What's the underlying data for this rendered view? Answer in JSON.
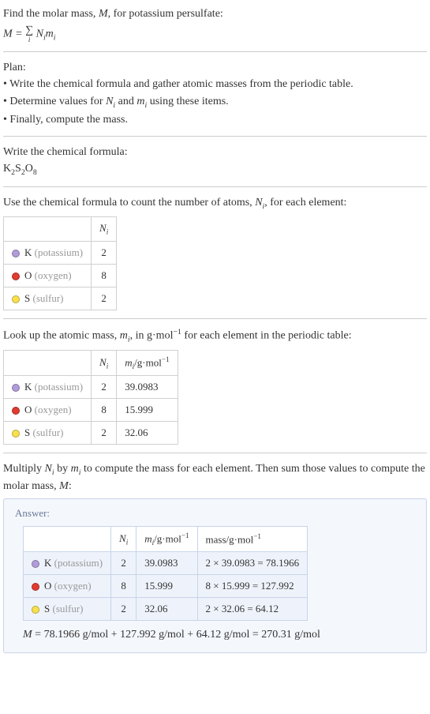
{
  "section1": {
    "intro": "Find the molar mass, ",
    "var_M": "M",
    "intro2": ", for potassium persulfate:",
    "formula_lhs": "M = ",
    "sigma": "∑",
    "sigma_sub": "i",
    "formula_rhs1": "N",
    "formula_rhs1_sub": "i",
    "formula_rhs2": "m",
    "formula_rhs2_sub": "i"
  },
  "plan": {
    "title": "Plan:",
    "b1": "• Write the chemical formula and gather atomic masses from the periodic table.",
    "b2a": "• Determine values for ",
    "b2_N": "N",
    "b2_Ni": "i",
    "b2b": " and ",
    "b2_m": "m",
    "b2_mi": "i",
    "b2c": " using these items.",
    "b3": "• Finally, compute the mass."
  },
  "section_chem": {
    "title": "Write the chemical formula:",
    "f1": "K",
    "s1": "2",
    "f2": "S",
    "s2": "2",
    "f3": "O",
    "s3": "8"
  },
  "section_count": {
    "text1": "Use the chemical formula to count the number of atoms, ",
    "N": "N",
    "Ni": "i",
    "text2": ", for each element:"
  },
  "table1": {
    "header_N": "N",
    "header_Ni": "i",
    "rows": [
      {
        "color": "#b19cd9",
        "sym": "K",
        "name": " (potassium)",
        "N": "2"
      },
      {
        "color": "#e03c31",
        "sym": "O",
        "name": " (oxygen)",
        "N": "8"
      },
      {
        "color": "#f9e04c",
        "sym": "S",
        "name": " (sulfur)",
        "N": "2"
      }
    ]
  },
  "section_mass": {
    "text1": "Look up the atomic mass, ",
    "m": "m",
    "mi": "i",
    "text2": ", in g·mol",
    "exp": "−1",
    "text3": " for each element in the periodic table:"
  },
  "table2": {
    "header_N": "N",
    "header_Ni": "i",
    "header_m": "m",
    "header_mi": "i",
    "header_unit": "/g·mol",
    "header_exp": "−1",
    "rows": [
      {
        "color": "#b19cd9",
        "sym": "K",
        "name": " (potassium)",
        "N": "2",
        "m": "39.0983"
      },
      {
        "color": "#e03c31",
        "sym": "O",
        "name": " (oxygen)",
        "N": "8",
        "m": "15.999"
      },
      {
        "color": "#f9e04c",
        "sym": "S",
        "name": " (sulfur)",
        "N": "2",
        "m": "32.06"
      }
    ]
  },
  "section_mult": {
    "t1": "Multiply ",
    "N": "N",
    "Ni": "i",
    "t2": " by ",
    "m": "m",
    "mi": "i",
    "t3": " to compute the mass for each element. Then sum those values to compute the molar mass, ",
    "M": "M",
    "t4": ":"
  },
  "answer": {
    "label": "Answer:",
    "header_N": "N",
    "header_Ni": "i",
    "header_m": "m",
    "header_mi": "i",
    "header_unit": "/g·mol",
    "header_exp": "−1",
    "header_mass": "mass/g·mol",
    "header_mass_exp": "−1",
    "rows": [
      {
        "color": "#b19cd9",
        "sym": "K",
        "name": " (potassium)",
        "N": "2",
        "m": "39.0983",
        "calc": "2 × 39.0983 = 78.1966"
      },
      {
        "color": "#e03c31",
        "sym": "O",
        "name": " (oxygen)",
        "N": "8",
        "m": "15.999",
        "calc": "8 × 15.999 = 127.992"
      },
      {
        "color": "#f9e04c",
        "sym": "S",
        "name": " (sulfur)",
        "N": "2",
        "m": "32.06",
        "calc": "2 × 32.06 = 64.12"
      }
    ],
    "eq_M": "M",
    "eq_rest": " = 78.1966 g/mol + 127.992 g/mol + 64.12 g/mol = 270.31 g/mol"
  }
}
